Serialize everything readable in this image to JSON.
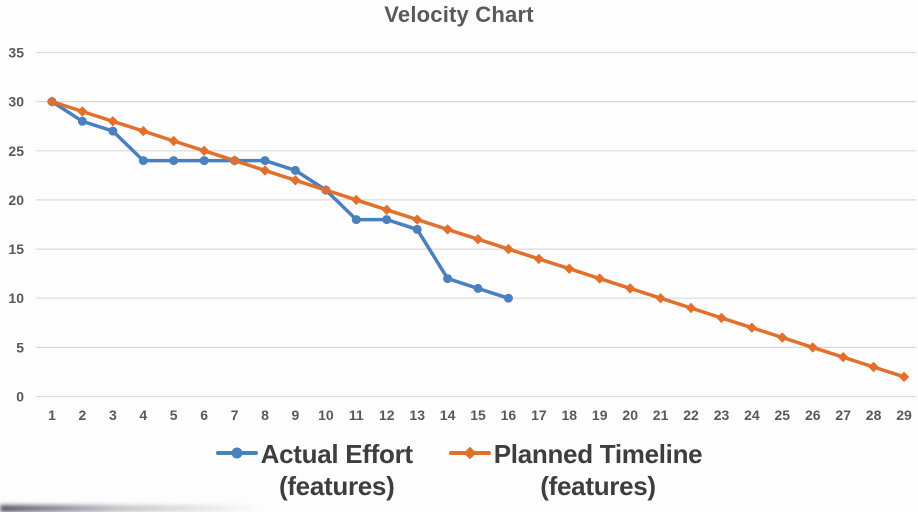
{
  "title": "Velocity Chart",
  "colors": {
    "actual_series": "#4B80BE",
    "planned_series": "#E2702C",
    "gridline": "#DADADA",
    "axis_text": "#595959",
    "title_text": "#58595B",
    "legend_text": "#3E3E3E",
    "background": "#FDFDFD"
  },
  "chart_data": {
    "type": "line",
    "title": "Velocity Chart",
    "xlabel": "",
    "ylabel": "",
    "x": [
      1,
      2,
      3,
      4,
      5,
      6,
      7,
      8,
      9,
      10,
      11,
      12,
      13,
      14,
      15,
      16,
      17,
      18,
      19,
      20,
      21,
      22,
      23,
      24,
      25,
      26,
      27,
      28,
      29
    ],
    "ylim": [
      0,
      35
    ],
    "yticks": [
      0,
      5,
      10,
      15,
      20,
      25,
      30,
      35
    ],
    "grid": true,
    "legend_position": "bottom",
    "series": [
      {
        "name": "Actual Effort (features)",
        "legend_line1": "Actual Effort",
        "legend_line2": "(features)",
        "color": "#4B80BE",
        "marker": "circle",
        "values": [
          30,
          28,
          27,
          24,
          24,
          24,
          24,
          24,
          23,
          21,
          18,
          18,
          17,
          12,
          11,
          10
        ]
      },
      {
        "name": "Planned Timeline (features)",
        "legend_line1": "Planned Timeline",
        "legend_line2": "(features)",
        "color": "#E2702C",
        "marker": "diamond",
        "values": [
          30,
          29,
          28,
          27,
          26,
          25,
          24,
          23,
          22,
          21,
          20,
          19,
          18,
          17,
          16,
          15,
          14,
          13,
          12,
          11,
          10,
          9,
          8,
          7,
          6,
          5,
          4,
          3,
          2
        ]
      }
    ]
  }
}
